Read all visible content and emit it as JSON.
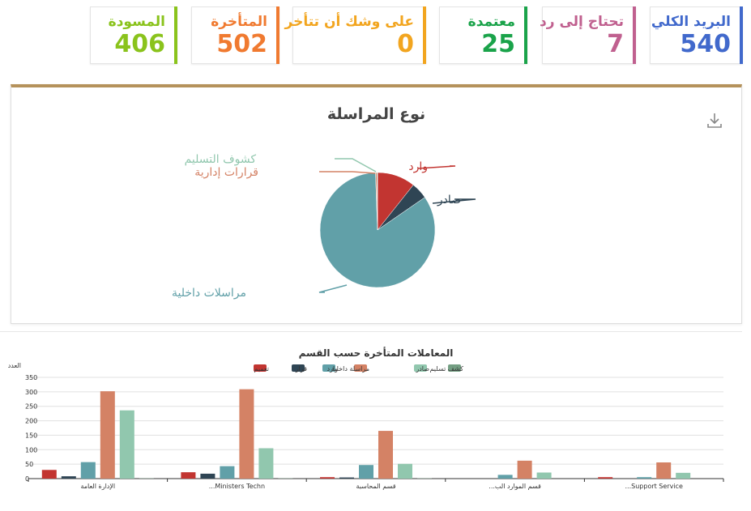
{
  "cards": [
    {
      "id": "card-total-mail",
      "label": "البريد الكلي",
      "value": "540",
      "color": "#4169cc"
    },
    {
      "id": "card-needs-reply",
      "label": "تحتاج إلى رد",
      "value": "7",
      "color": "#c0608f"
    },
    {
      "id": "card-approved",
      "label": "معتمدة",
      "value": "25",
      "color": "#1aa34a"
    },
    {
      "id": "card-almost-late",
      "label": "على وشك أن تتأخر",
      "value": "0",
      "color": "#f2a51f"
    },
    {
      "id": "card-late",
      "label": "المتأخرة",
      "value": "502",
      "color": "#f07a30"
    },
    {
      "id": "card-draft",
      "label": "المسودة",
      "value": "406",
      "color": "#8ac31c"
    }
  ],
  "colors": {
    "panel_accent": "#b5925b"
  },
  "icons": {
    "download": "download-icon"
  },
  "chart_data": [
    {
      "type": "pie",
      "title": "نوع المراسلة",
      "slices": [
        {
          "label": "وارد",
          "value": 57,
          "color": "#c23531"
        },
        {
          "label": "صادر",
          "value": 25,
          "color": "#2f4554"
        },
        {
          "label": "مراسلات داخلية",
          "value": 448,
          "color": "#61a0a8"
        },
        {
          "label": "قرارات إدارية",
          "value": 2,
          "color": "#d48265"
        },
        {
          "label": "كشوف التسليم",
          "value": 1,
          "color": "#91c7ae"
        }
      ]
    },
    {
      "type": "bar",
      "title": "المعاملات المتأخرة حسب القسم",
      "ylabel": "العدد",
      "ylim": [
        0,
        350
      ],
      "yticks": [
        0,
        50,
        100,
        150,
        200,
        250,
        300,
        350
      ],
      "categories": [
        "الإدارة العامة",
        "Ministers Techn...",
        "قسم المحاسبة",
        "قسم الموارد الب...",
        "Support Service..."
      ],
      "series": [
        {
          "name": "تعميم",
          "color": "#c23531",
          "values": [
            30,
            22,
            5,
            0,
            5
          ]
        },
        {
          "name": "قرار",
          "color": "#2f4554",
          "values": [
            8,
            17,
            4,
            0,
            0
          ]
        },
        {
          "name": "وارد",
          "color": "#61a0a8",
          "values": [
            57,
            43,
            47,
            13,
            5
          ]
        },
        {
          "name": "مراسلة داخلية",
          "color": "#d48265",
          "values": [
            302,
            309,
            165,
            62,
            56
          ]
        },
        {
          "name": "صادر",
          "color": "#91c7ae",
          "values": [
            236,
            105,
            51,
            21,
            20
          ]
        },
        {
          "name": "كشف تسليم",
          "color": "#749f83",
          "values": [
            1,
            1,
            1,
            0,
            0
          ]
        }
      ]
    }
  ]
}
